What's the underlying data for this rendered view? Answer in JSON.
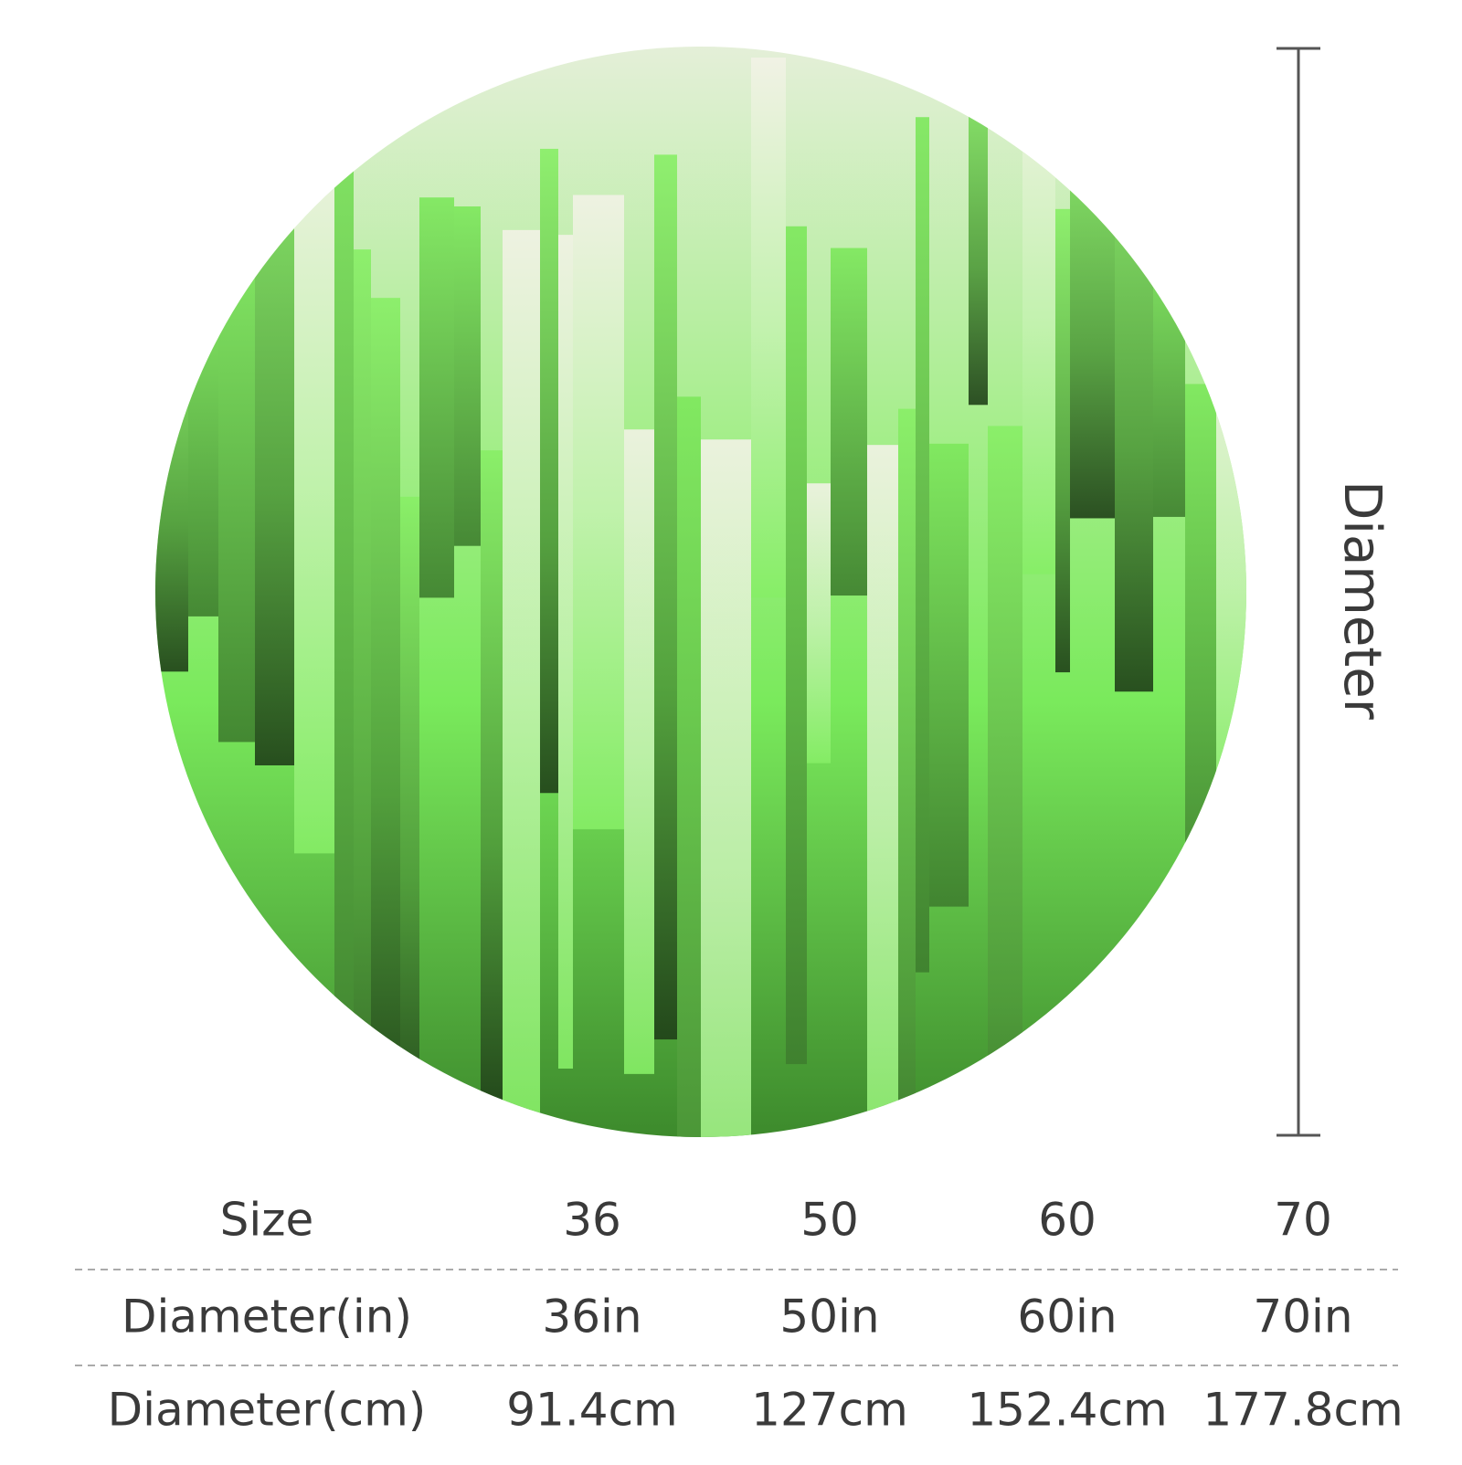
{
  "diameter_label": "Diameter",
  "table": {
    "rows": [
      [
        "Size",
        "36",
        "50",
        "60",
        "70"
      ],
      [
        "Diameter(in)",
        "36in",
        "50in",
        "60in",
        "70in"
      ],
      [
        "Diameter(cm)",
        "91.4cm",
        "127cm",
        "152.4cm",
        "177.8cm"
      ]
    ]
  }
}
